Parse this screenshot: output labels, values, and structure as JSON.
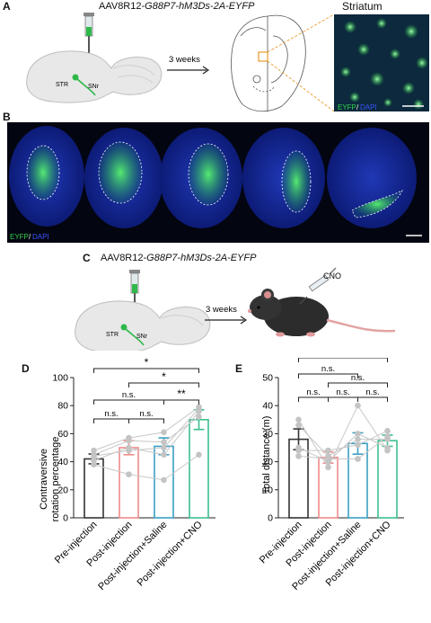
{
  "panels": {
    "A": {
      "label": "A",
      "virus": "AAV8R12-",
      "virus_italic": "G88P7-hM3Ds-2A-EYFP",
      "str": "STR",
      "snr": "SNr",
      "arrow_text": "3 weeks",
      "micro_title": "Striatum",
      "stain_green": "EYFP",
      "stain_sep": "/",
      "stain_blue": "DAPI"
    },
    "B": {
      "label": "B",
      "stain_green": "EYFP",
      "stain_sep": "/",
      "stain_blue": "DAPI"
    },
    "C": {
      "label": "C",
      "virus": "AAV8R12-",
      "virus_italic": "G88P7-hM3Ds-2A-EYFP",
      "str": "STR",
      "snr": "SNr",
      "arrow_text": "3 weeks",
      "cno": "CNO"
    },
    "D": {
      "label": "D"
    },
    "E": {
      "label": "E"
    }
  },
  "colors": {
    "pre": "#333333",
    "post": "#f08a8a",
    "saline": "#3a9fc4",
    "cno": "#3cc08e",
    "eyfp": "#2fd04a",
    "dapi": "#2a3fd0"
  },
  "chart_data": [
    {
      "type": "bar",
      "panel": "D",
      "categories": [
        "Pre-injection",
        "Post-injection",
        "Post-injection+Saline",
        "Post-injection+CNO"
      ],
      "values": [
        42,
        50,
        51,
        70
      ],
      "errors": [
        3.5,
        5,
        6,
        7
      ],
      "individual": [
        [
          48,
          38,
          41,
          44,
          45
        ],
        [
          57,
          31,
          50,
          48,
          55
        ],
        [
          61,
          27,
          45,
          50,
          54
        ],
        [
          79,
          45,
          76,
          78,
          72
        ]
      ],
      "ylabel_line1": "Contraversive",
      "ylabel_line2": "rotation percentage",
      "ylim": [
        0,
        100
      ],
      "yticks": [
        0,
        20,
        40,
        60,
        80,
        100
      ],
      "significance": [
        {
          "from": 0,
          "to": 3,
          "label": "*"
        },
        {
          "from": 1,
          "to": 3,
          "label": "*"
        },
        {
          "from": 0,
          "to": 2,
          "label": "n.s."
        },
        {
          "from": 2,
          "to": 3,
          "label": "**"
        },
        {
          "from": 0,
          "to": 1,
          "label": "n.s."
        },
        {
          "from": 1,
          "to": 2,
          "label": "n.s."
        }
      ]
    },
    {
      "type": "bar",
      "panel": "E",
      "categories": [
        "Pre-injection",
        "Post-injection",
        "Post-injection+Saline",
        "Post-injection+CNO"
      ],
      "values": [
        28,
        21.5,
        26.5,
        27.5
      ],
      "errors": [
        3.7,
        2,
        3.8,
        2
      ],
      "individual": [
        [
          35,
          33,
          24,
          22,
          25
        ],
        [
          18,
          22,
          24,
          21,
          20
        ],
        [
          40,
          28,
          26,
          21,
          30
        ],
        [
          24,
          28,
          31,
          29,
          25
        ]
      ],
      "ylabel": "Total distance (m)",
      "ylim": [
        0,
        50
      ],
      "yticks": [
        0,
        10,
        20,
        30,
        40,
        50
      ],
      "significance": [
        {
          "from": 0,
          "to": 3,
          "label": "n.s."
        },
        {
          "from": 0,
          "to": 2,
          "label": "n.s."
        },
        {
          "from": 1,
          "to": 3,
          "label": "n.s."
        },
        {
          "from": 0,
          "to": 1,
          "label": "n.s."
        },
        {
          "from": 1,
          "to": 2,
          "label": "n.s."
        },
        {
          "from": 2,
          "to": 3,
          "label": "n.s."
        }
      ]
    }
  ]
}
